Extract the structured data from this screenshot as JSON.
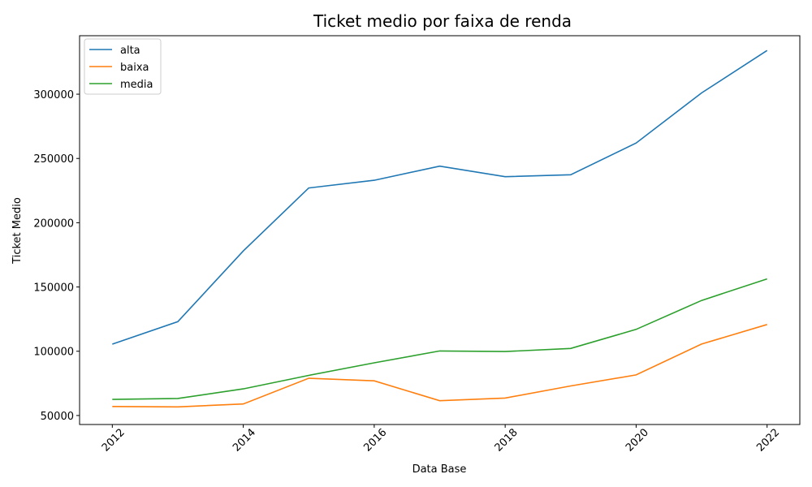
{
  "chart_data": {
    "type": "line",
    "title": "Ticket medio por faixa de renda",
    "xlabel": "Data Base",
    "ylabel": "Ticket Medio",
    "x": [
      2012,
      2013,
      2014,
      2015,
      2016,
      2017,
      2018,
      2019,
      2020,
      2021,
      2022
    ],
    "xticks": [
      2012,
      2014,
      2016,
      2018,
      2020,
      2022
    ],
    "yticks": [
      50000,
      100000,
      150000,
      200000,
      250000,
      300000
    ],
    "xlim": [
      2011.5,
      2022.5
    ],
    "ylim": [
      43000,
      345500
    ],
    "grid": false,
    "legend_position": "upper left",
    "series": [
      {
        "name": "alta",
        "color": "#1f77b4",
        "values": [
          105500,
          123000,
          178000,
          227000,
          233000,
          244000,
          235800,
          237300,
          262000,
          301000,
          334000
        ]
      },
      {
        "name": "baixa",
        "color": "#ff7f0e",
        "values": [
          57000,
          56700,
          59000,
          79000,
          77000,
          61500,
          63600,
          73000,
          81600,
          105600,
          120800
        ]
      },
      {
        "name": "media",
        "color": "#2ca02c",
        "values": [
          62500,
          63300,
          70700,
          81200,
          91000,
          100200,
          99800,
          102200,
          117000,
          139500,
          156300
        ]
      }
    ]
  }
}
